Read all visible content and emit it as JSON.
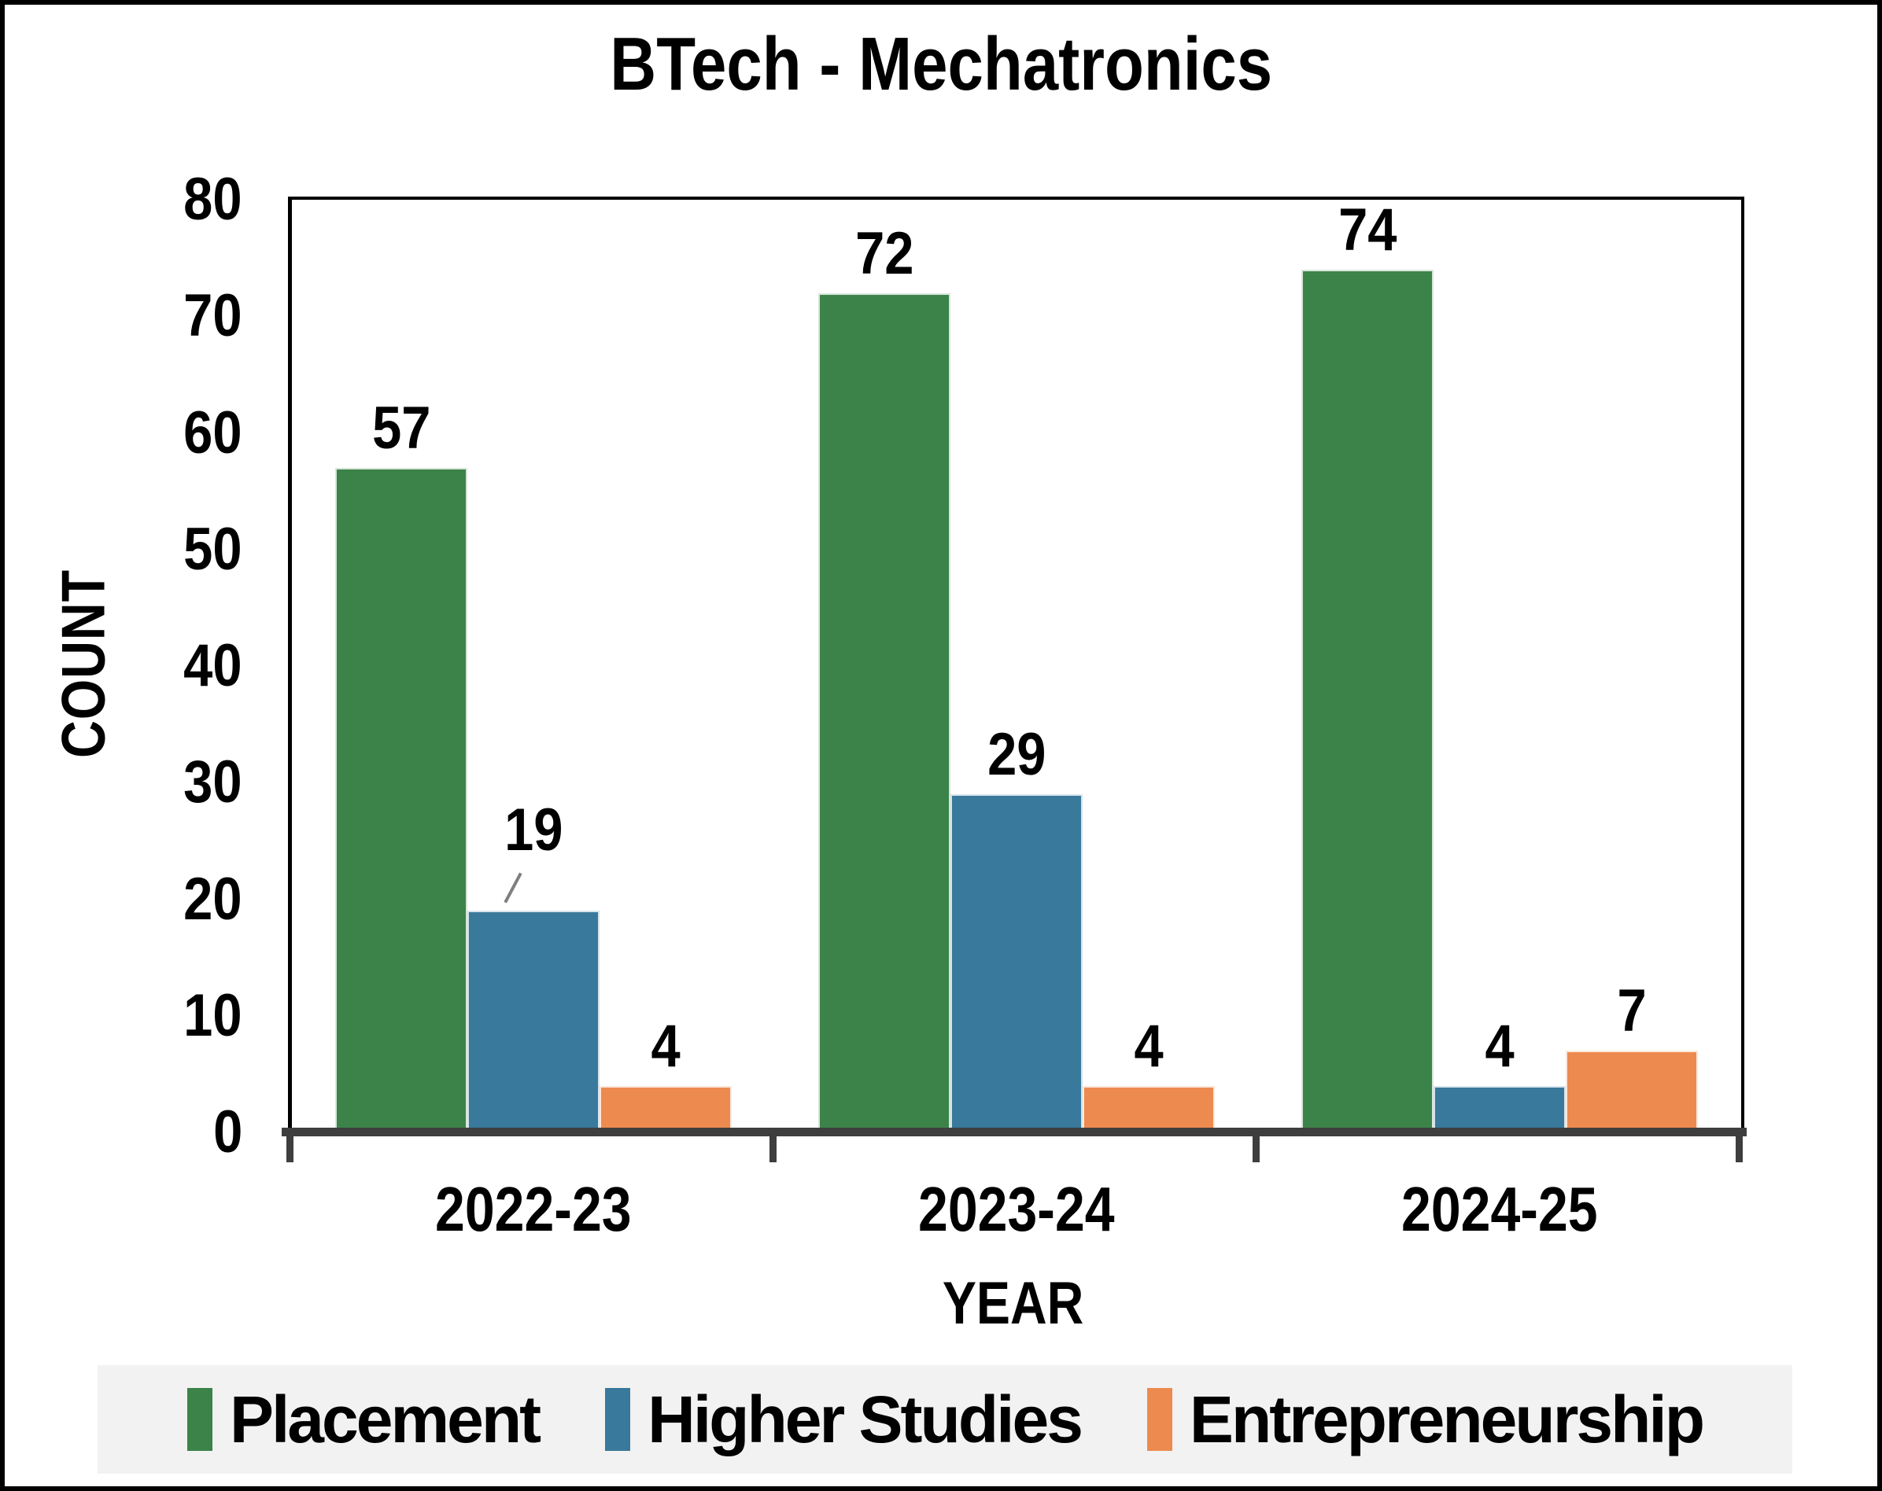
{
  "chart_data": {
    "type": "bar",
    "title": "BTech - Mechatronics",
    "xlabel": "YEAR",
    "ylabel": "COUNT",
    "categories": [
      "2022-23",
      "2023-24",
      "2024-25"
    ],
    "series": [
      {
        "name": "Placement",
        "color": "#3C8349",
        "values": [
          57,
          72,
          74
        ]
      },
      {
        "name": "Higher Studies",
        "color": "#39799B",
        "values": [
          19,
          29,
          4
        ]
      },
      {
        "name": "Entrepreneurship",
        "color": "#ED8A4F",
        "values": [
          4,
          4,
          7
        ]
      }
    ],
    "ylim": [
      0,
      80
    ],
    "y_ticks": [
      0,
      10,
      20,
      30,
      40,
      50,
      60,
      70,
      80
    ],
    "grid": "off",
    "legend_position": "bottom",
    "data_labels": "above-bars",
    "label_leaders": [
      {
        "series_index": 1,
        "category_index": 0
      }
    ]
  },
  "colors": {
    "axis_line": "#3E3E3E",
    "plot_border": "#000000",
    "legend_background": "#F2F2F2",
    "text": "#000000",
    "leader_line": "#7F7F7F"
  }
}
